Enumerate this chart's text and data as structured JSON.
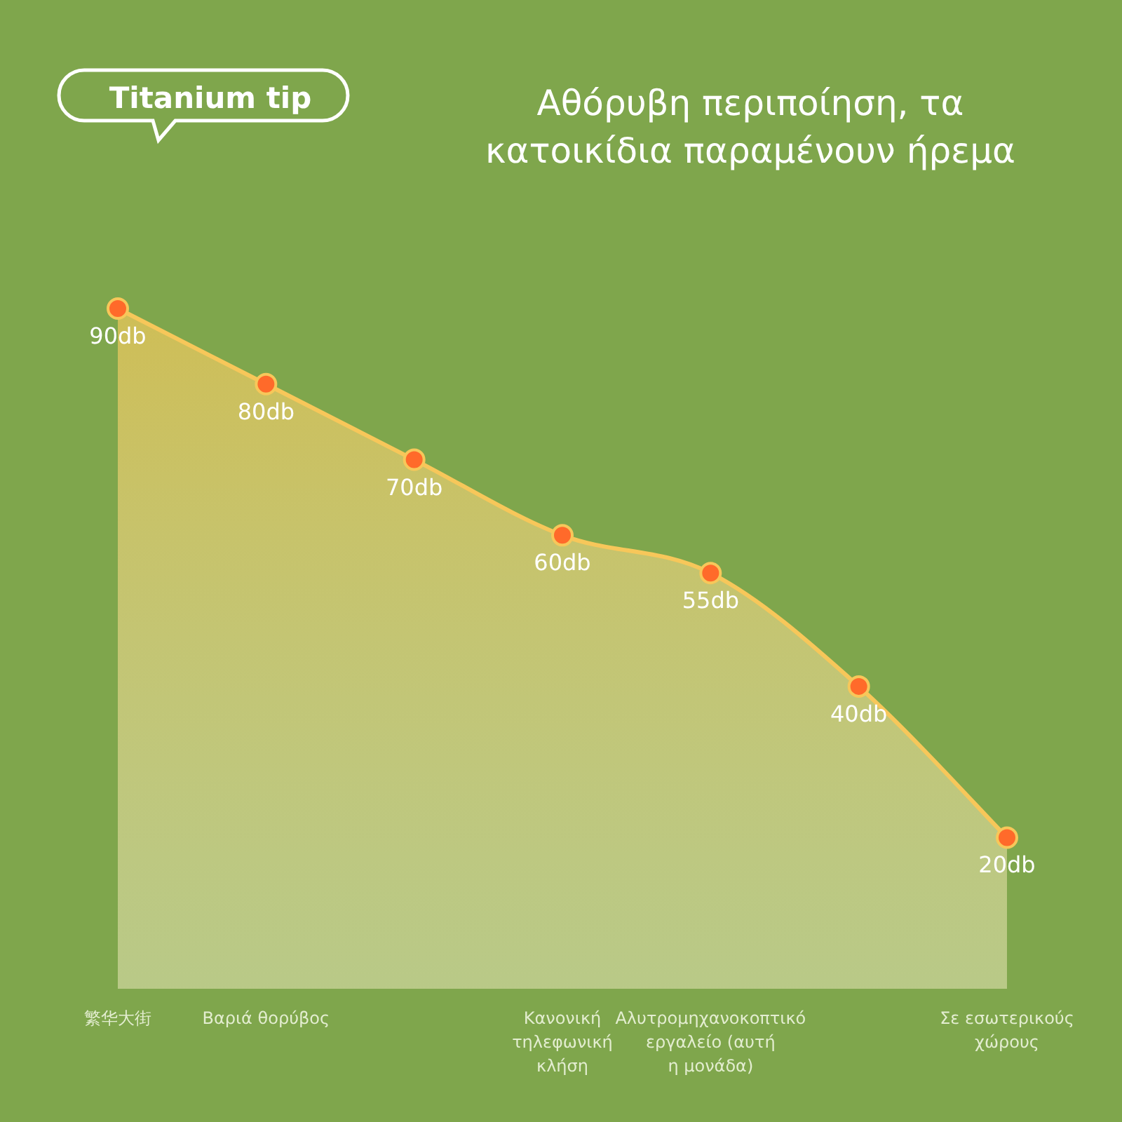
{
  "chart_data": {
    "type": "area",
    "title": "Αθόρυβη περιποίηση, τα κατοικίδια παραμένουν ήρεμα",
    "annotations": [
      "Titanium tip"
    ],
    "categories": [
      "繁华大街",
      "Βαριά θορύβος",
      null,
      "Κανονική τηλεφωνική κλήση",
      "Αλυτρομηχανοκοπτικό εργαλείο (αυτή η μονάδα)",
      null,
      "Σε εσωτερικούς χώρους"
    ],
    "series": [
      {
        "color": "#f7c75a",
        "values": [
          90,
          80,
          70,
          60,
          55,
          40,
          20
        ],
        "value_labels": [
          "90db",
          "80db",
          "70db",
          "60db",
          "55db",
          "40db",
          "20db"
        ]
      }
    ],
    "marker": "circle"
  }
}
